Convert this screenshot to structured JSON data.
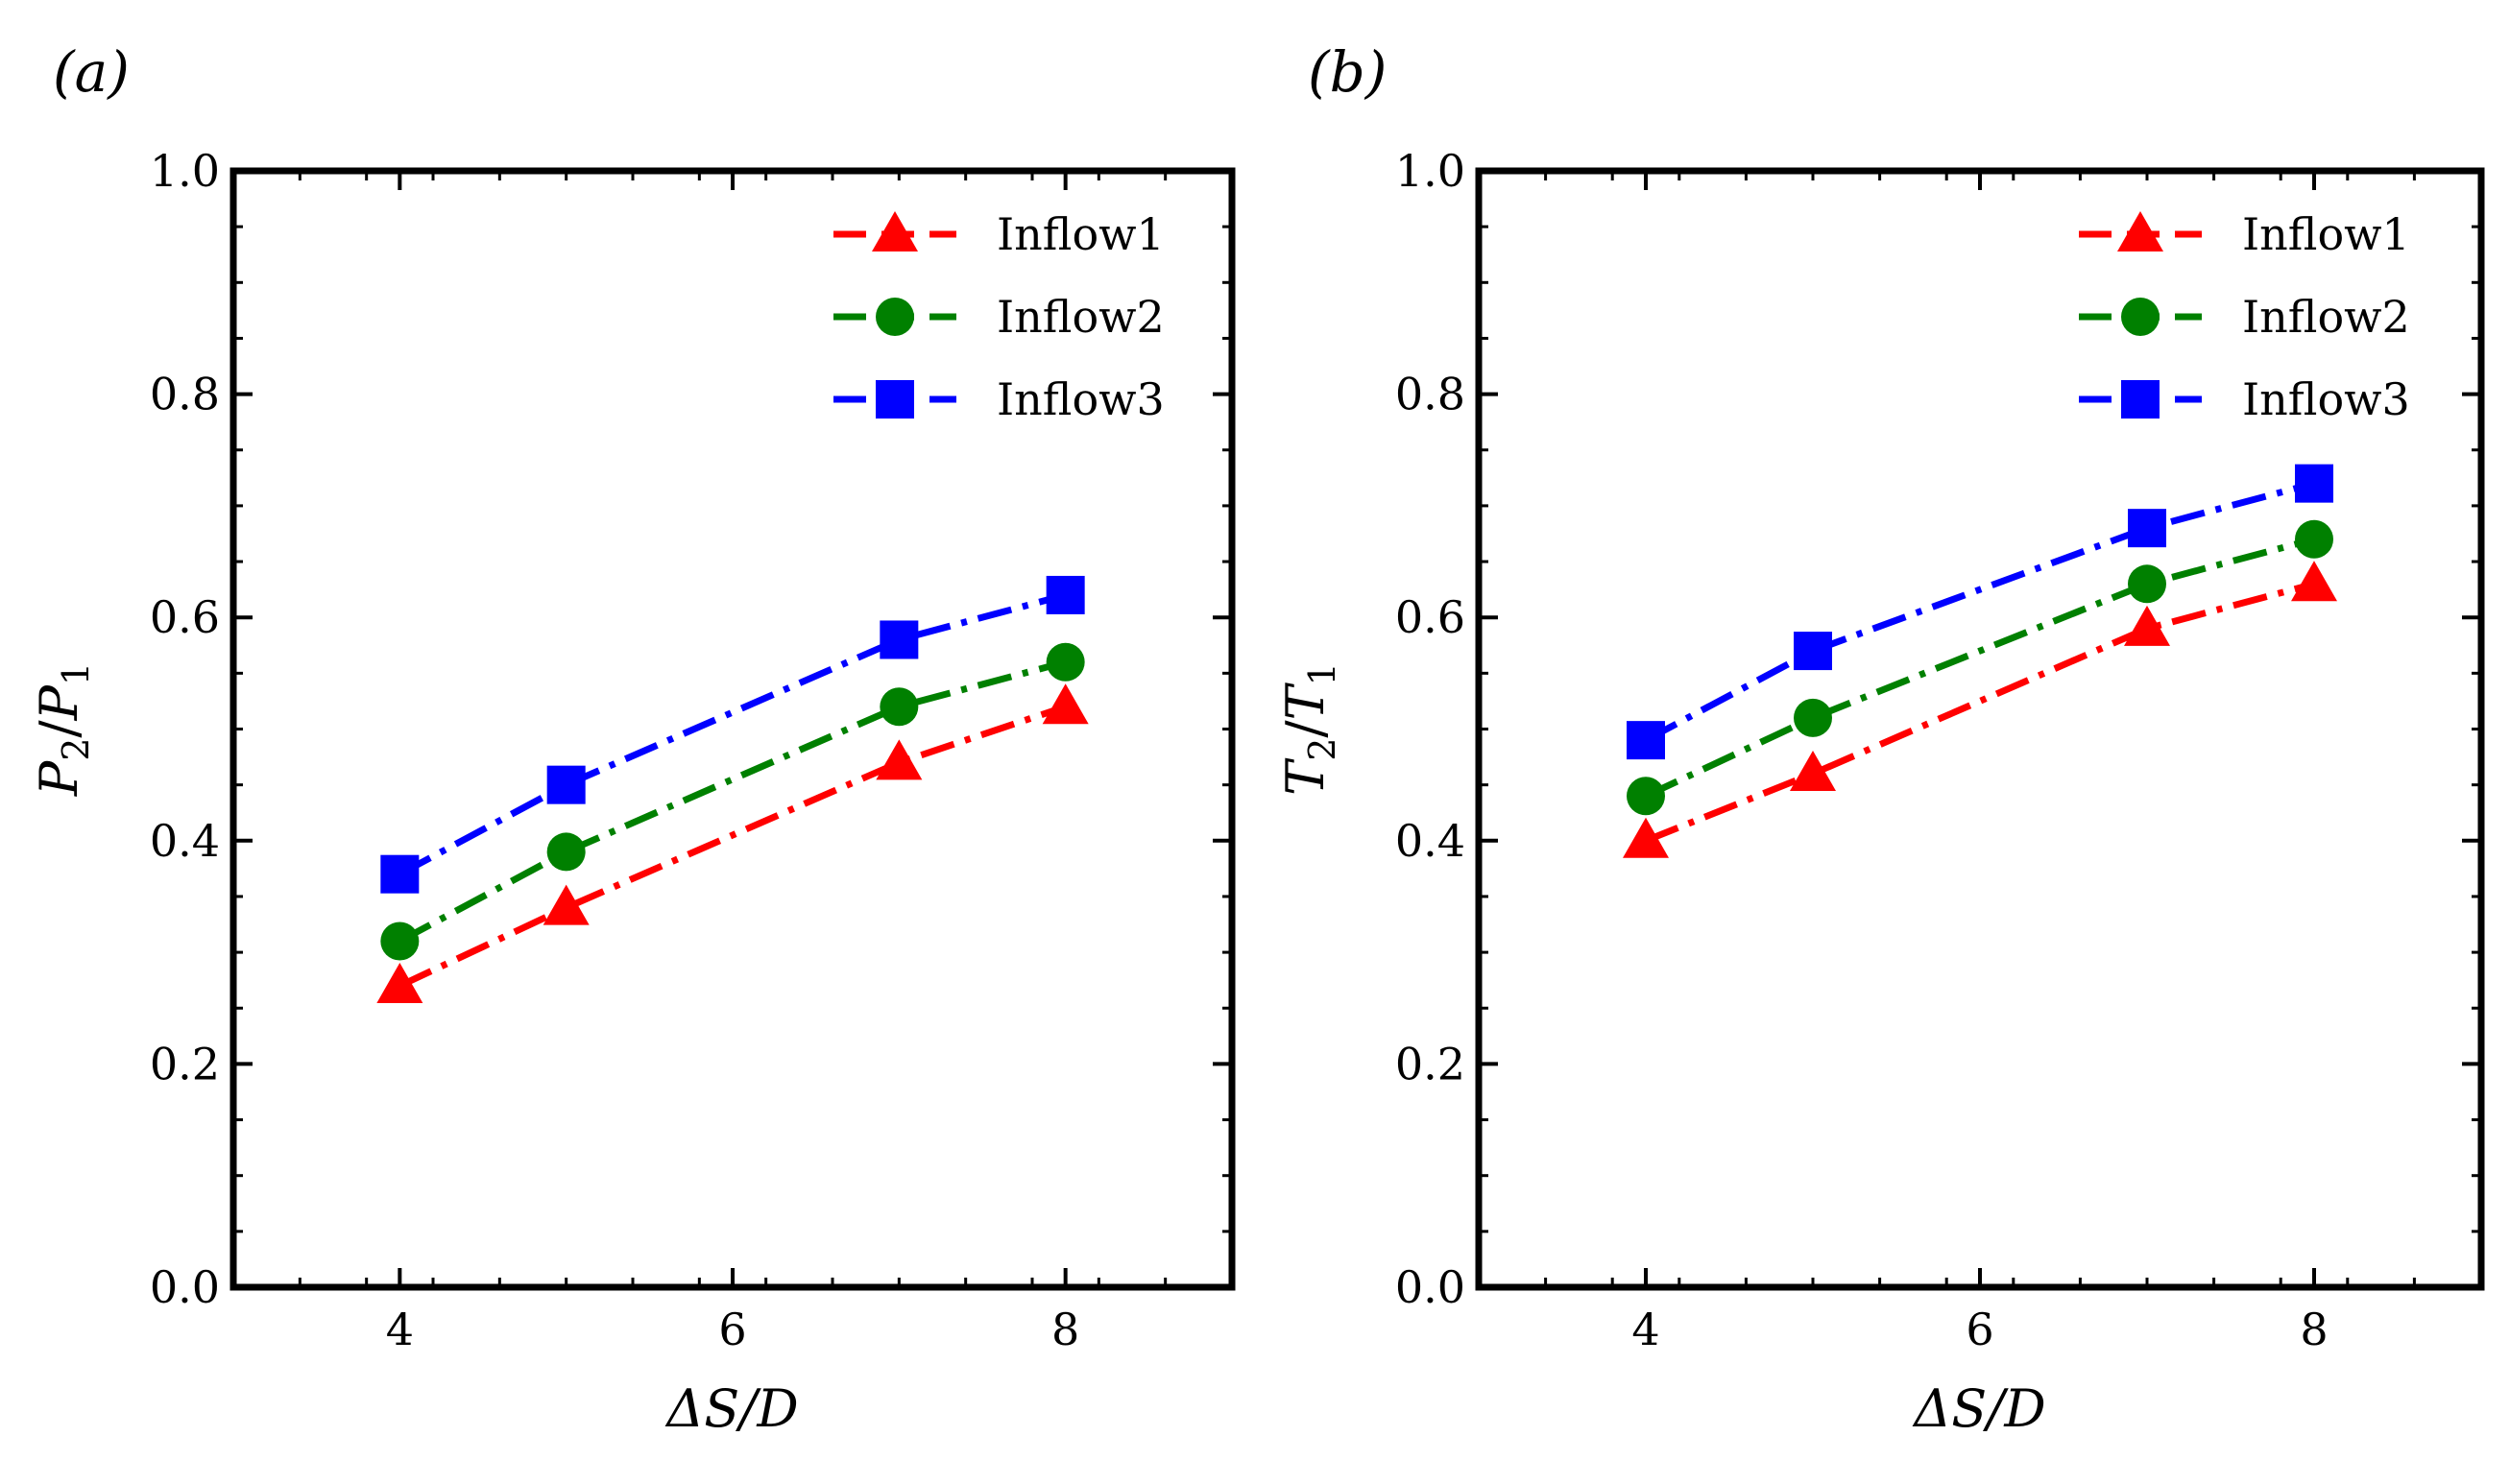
{
  "chart_data": [
    {
      "type": "line",
      "panel_label": "(a)",
      "title": "",
      "xlabel": "ΔS/D",
      "ylabel_main": "P",
      "ylabel_num_sub": "2",
      "ylabel_slash": "/",
      "ylabel_den_sub": "1",
      "xlim": [
        3,
        9
      ],
      "ylim": [
        0.0,
        1.0
      ],
      "xticks": [
        4,
        6,
        8
      ],
      "xtick_labels": [
        "4",
        "6",
        "8"
      ],
      "yticks": [
        0.0,
        0.2,
        0.4,
        0.6,
        0.8,
        1.0
      ],
      "ytick_labels": [
        "0.0",
        "0.2",
        "0.4",
        "0.6",
        "0.8",
        "1.0"
      ],
      "legend_position": "top-right",
      "grid": false,
      "x": [
        4,
        5,
        7,
        8
      ],
      "series": [
        {
          "name": "Inflow1",
          "values": [
            0.27,
            0.34,
            0.47,
            0.52
          ],
          "color": "#ff0000",
          "marker": "triangle"
        },
        {
          "name": "Inflow2",
          "values": [
            0.31,
            0.39,
            0.52,
            0.56
          ],
          "color": "#008000",
          "marker": "circle"
        },
        {
          "name": "Inflow3",
          "values": [
            0.37,
            0.45,
            0.58,
            0.62
          ],
          "color": "#0000ff",
          "marker": "square"
        }
      ]
    },
    {
      "type": "line",
      "panel_label": "(b)",
      "title": "",
      "xlabel": "ΔS/D",
      "ylabel_main": "T",
      "ylabel_num_sub": "2",
      "ylabel_slash": "/",
      "ylabel_den_sub": "1",
      "xlim": [
        3,
        9
      ],
      "ylim": [
        0.0,
        1.0
      ],
      "xticks": [
        4,
        6,
        8
      ],
      "xtick_labels": [
        "4",
        "6",
        "8"
      ],
      "yticks": [
        0.0,
        0.2,
        0.4,
        0.6,
        0.8,
        1.0
      ],
      "ytick_labels": [
        "0.0",
        "0.2",
        "0.4",
        "0.6",
        "0.8",
        "1.0"
      ],
      "legend_position": "top-right",
      "grid": false,
      "x": [
        4,
        5,
        7,
        8
      ],
      "series": [
        {
          "name": "Inflow1",
          "values": [
            0.4,
            0.46,
            0.59,
            0.63
          ],
          "color": "#ff0000",
          "marker": "triangle"
        },
        {
          "name": "Inflow2",
          "values": [
            0.44,
            0.51,
            0.63,
            0.67
          ],
          "color": "#008000",
          "marker": "circle"
        },
        {
          "name": "Inflow3",
          "values": [
            0.49,
            0.57,
            0.68,
            0.72
          ],
          "color": "#0000ff",
          "marker": "square"
        }
      ]
    }
  ]
}
